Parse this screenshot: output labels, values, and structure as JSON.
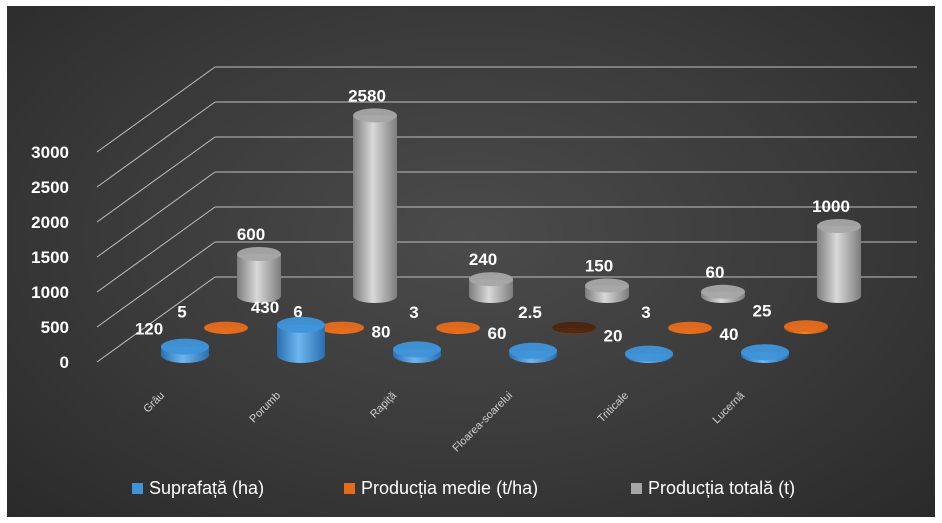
{
  "chart_data": {
    "type": "bar",
    "style": "3d-cylinder",
    "categories": [
      "Grâu",
      "Porumb",
      "Rapiță",
      "Floarea-soarelui",
      "Triticale",
      "Lucernă"
    ],
    "series": [
      {
        "name": "Suprafață (ha)",
        "color": "#3f93d9",
        "values": [
          120,
          430,
          80,
          60,
          20,
          40
        ],
        "labels": [
          "120",
          "430",
          "80",
          "60",
          "20",
          "40"
        ]
      },
      {
        "name": "Producția medie (t/ha)",
        "color": "#e46c1c",
        "values": [
          5,
          6,
          3,
          2.5,
          3,
          25
        ],
        "labels": [
          "5",
          "6",
          "3",
          "2.5",
          "3",
          "25"
        ]
      },
      {
        "name": "Producția totală (t)",
        "color": "#a6a6a6",
        "values": [
          600,
          2580,
          240,
          150,
          60,
          1000
        ],
        "labels": [
          "600",
          "2580",
          "240",
          "150",
          "60",
          "1000"
        ]
      }
    ],
    "ylim": [
      0,
      3000
    ],
    "yticks": [
      "0",
      "500",
      "1000",
      "1500",
      "2000",
      "2500",
      "3000"
    ],
    "grid": true,
    "legend": "bottom"
  }
}
